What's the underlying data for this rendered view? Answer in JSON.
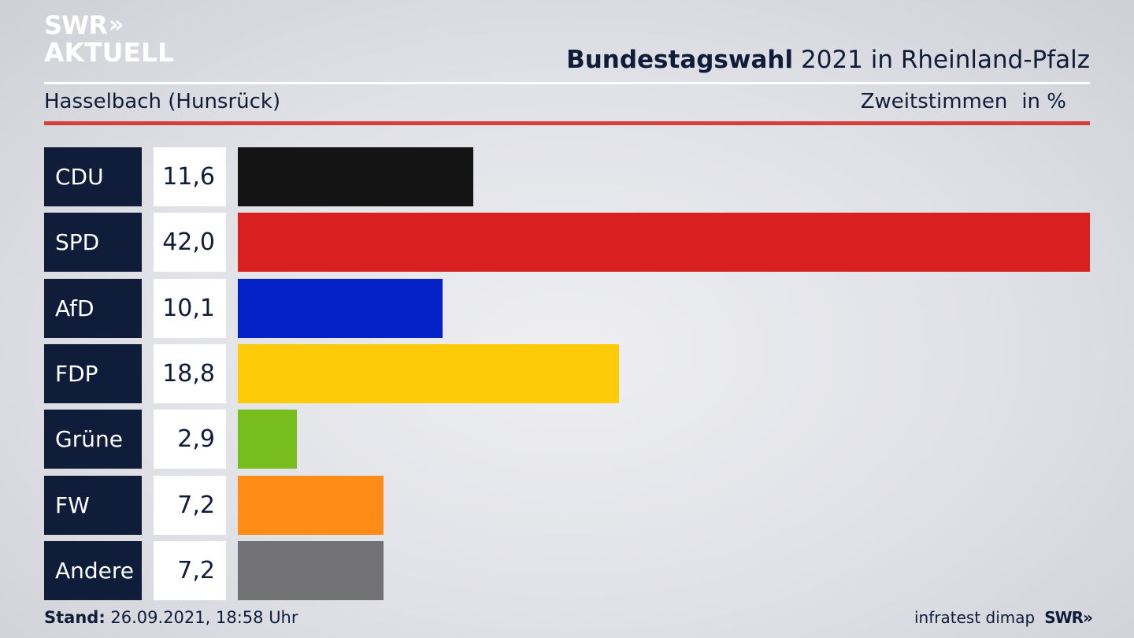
{
  "logo": {
    "line1": "SWR",
    "chevrons": "»",
    "line2": "AKTUELL"
  },
  "header": {
    "title_bold": "Bundestagswahl",
    "title_rest": "2021 in Rheinland-Pfalz",
    "subtitle": "Hasselbach (Hunsrück)",
    "measure": "Zweitstimmen",
    "unit": "in %"
  },
  "chart_data": {
    "type": "bar",
    "orientation": "horizontal",
    "categories": [
      "CDU",
      "SPD",
      "AfD",
      "FDP",
      "Grüne",
      "FW",
      "Andere"
    ],
    "values": [
      11.6,
      42.0,
      10.1,
      18.8,
      2.9,
      7.2,
      7.2
    ],
    "value_labels": [
      "11,6",
      "42,0",
      "10,1",
      "18,8",
      "2,9",
      "7,2",
      "7,2"
    ],
    "colors": [
      "#141414",
      "#d7201f",
      "#0422c8",
      "#fecb0b",
      "#77bd1e",
      "#ff8c17",
      "#727274"
    ],
    "xlim": [
      0,
      42.0
    ],
    "grid": false,
    "legend": "none"
  },
  "footer": {
    "stand_label": "Stand:",
    "stand_value": "26.09.2021, 18:58 Uhr",
    "source": "infratest dimap",
    "brand": "SWR",
    "brand_chevrons": "»"
  }
}
